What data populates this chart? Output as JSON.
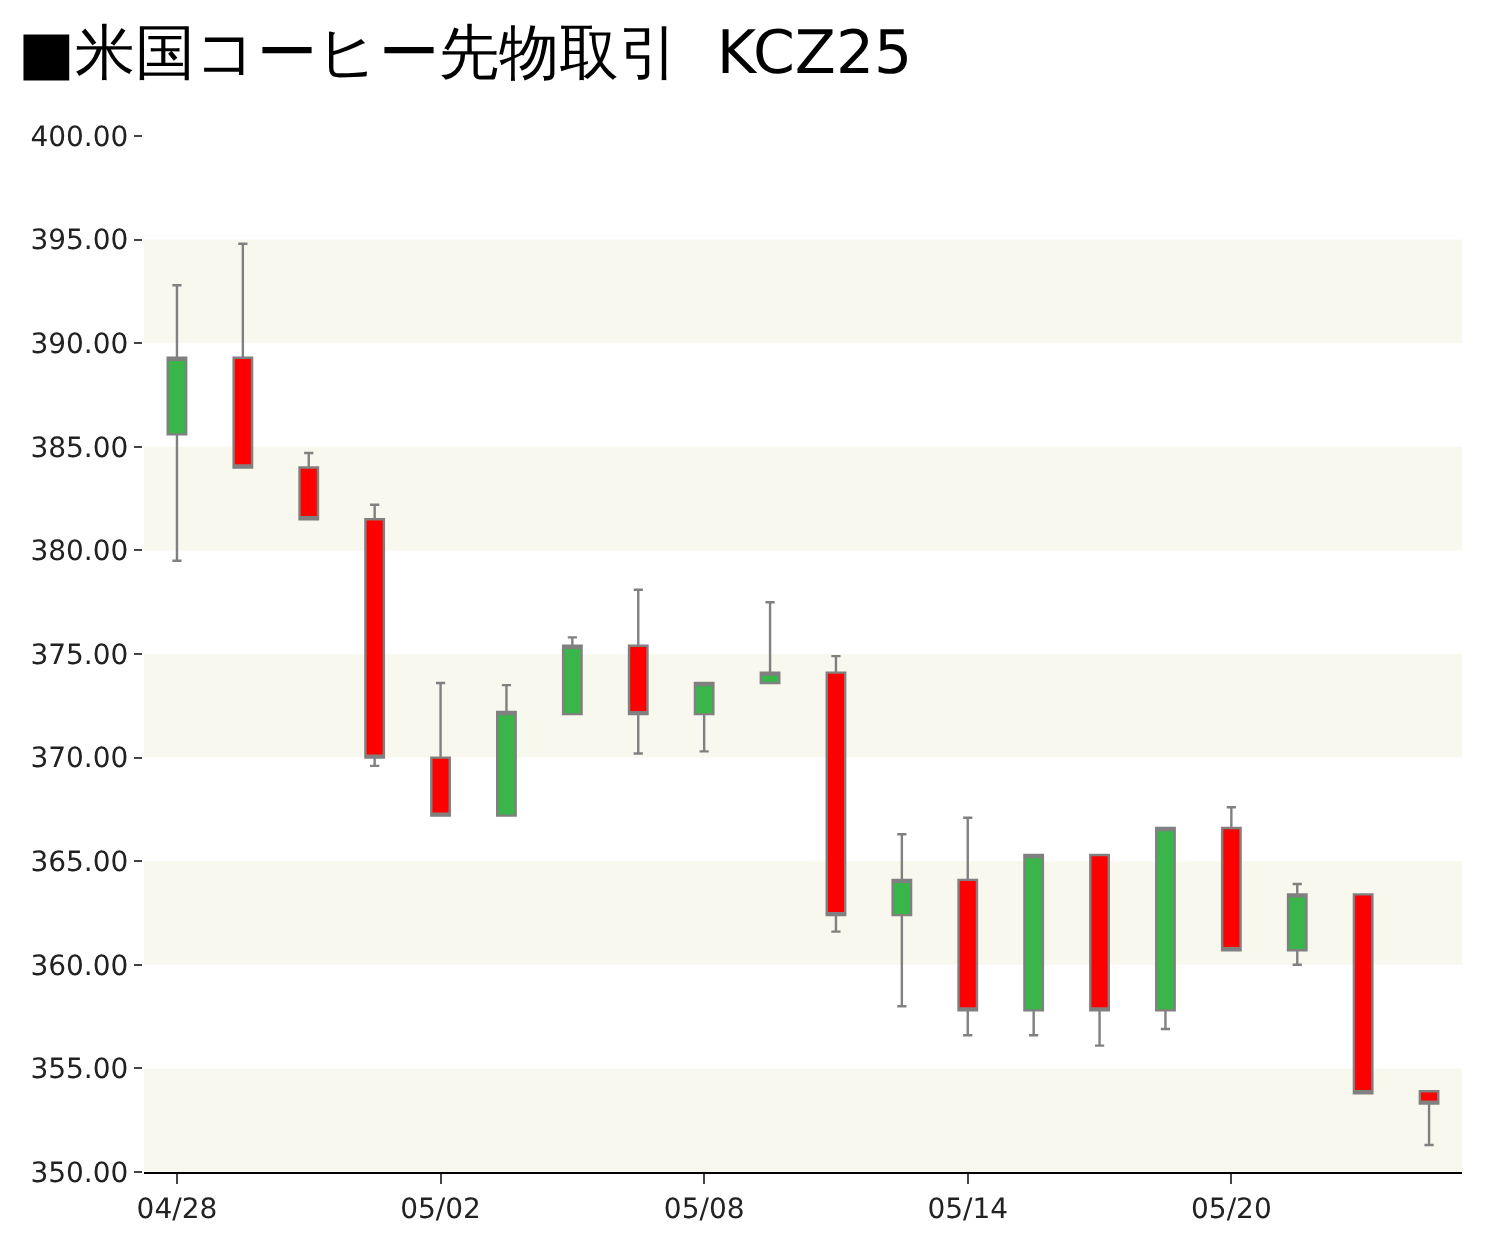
{
  "chart_data": {
    "type": "candlestick",
    "title": "■米国コーヒー先物取引  KCZ25",
    "categories": [
      "04/28",
      null,
      null,
      null,
      "05/02",
      null,
      null,
      null,
      "05/08",
      null,
      null,
      null,
      "05/14",
      null,
      null,
      null,
      "05/20",
      null,
      null,
      null
    ],
    "ohlc": [
      [
        385.6,
        392.8,
        379.5,
        389.3
      ],
      [
        389.3,
        394.8,
        384.0,
        384.0
      ],
      [
        384.0,
        384.7,
        381.5,
        381.5
      ],
      [
        381.5,
        382.2,
        369.6,
        370.0
      ],
      [
        370.0,
        373.6,
        367.2,
        367.2
      ],
      [
        367.2,
        373.5,
        367.2,
        372.2
      ],
      [
        372.1,
        375.8,
        372.1,
        375.4
      ],
      [
        375.4,
        378.1,
        370.2,
        372.1
      ],
      [
        372.1,
        373.6,
        370.3,
        373.6
      ],
      [
        373.6,
        377.5,
        373.6,
        374.1
      ],
      [
        374.1,
        374.9,
        361.6,
        362.4
      ],
      [
        362.4,
        366.3,
        358.0,
        364.1
      ],
      [
        364.1,
        367.1,
        356.6,
        357.8
      ],
      [
        357.8,
        365.3,
        356.6,
        365.3
      ],
      [
        365.3,
        365.3,
        356.1,
        357.8
      ],
      [
        357.8,
        366.6,
        356.9,
        366.6
      ],
      [
        366.6,
        367.6,
        360.7,
        360.7
      ],
      [
        360.7,
        363.9,
        360.0,
        363.4
      ],
      [
        363.4,
        363.4,
        353.8,
        353.8
      ],
      [
        353.9,
        353.9,
        351.3,
        353.3
      ]
    ],
    "colors": [
      "#39b54a",
      "#ff0000",
      "#ff0000",
      "#ff0000",
      "#ff0000",
      "#39b54a",
      "#39b54a",
      "#ff0000",
      "#39b54a",
      "#39b54a",
      "#ff0000",
      "#39b54a",
      "#ff0000",
      "#39b54a",
      "#ff0000",
      "#39b54a",
      "#ff0000",
      "#39b54a",
      "#ff0000",
      "#ff0000"
    ],
    "ylim": [
      350,
      400
    ],
    "yticks": [
      {
        "value": 350,
        "label": "350.00"
      },
      {
        "value": 355,
        "label": "355.00"
      },
      {
        "value": 360,
        "label": "360.00"
      },
      {
        "value": 365,
        "label": "365.00"
      },
      {
        "value": 370,
        "label": "370.00"
      },
      {
        "value": 375,
        "label": "375.00"
      },
      {
        "value": 380,
        "label": "380.00"
      },
      {
        "value": 385,
        "label": "385.00"
      },
      {
        "value": 390,
        "label": "390.00"
      },
      {
        "value": 395,
        "label": "395.00"
      },
      {
        "value": 400,
        "label": "400.00"
      }
    ],
    "bands": [
      {
        "axis": "y",
        "from": 350,
        "to": 355,
        "color": "#f9f8ef"
      },
      {
        "axis": "y",
        "from": 360,
        "to": 365,
        "color": "#f9f8ef"
      },
      {
        "axis": "y",
        "from": 370,
        "to": 375,
        "color": "#f9f8ef"
      },
      {
        "axis": "y",
        "from": 380,
        "to": 385,
        "color": "#f9f8ef"
      },
      {
        "axis": "y",
        "from": 390,
        "to": 395,
        "color": "#f9f8ef"
      }
    ],
    "grid": false
  }
}
